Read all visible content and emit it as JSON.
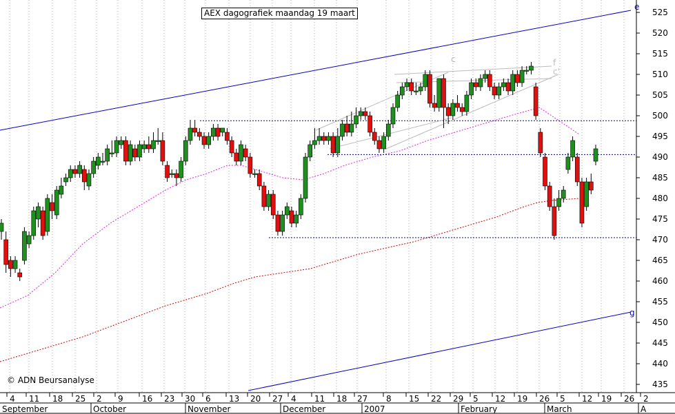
{
  "chart_data": {
    "type": "candlestick",
    "title": "AEX dagografiek maandag 19 maart",
    "credit": "© ADN Beursanalyse",
    "ylim": [
      433,
      528
    ],
    "y_ticks": [
      435,
      440,
      445,
      450,
      455,
      460,
      465,
      470,
      475,
      480,
      485,
      490,
      495,
      500,
      505,
      510,
      515,
      520,
      525
    ],
    "grid": "vertical dotted lines at each week",
    "x_tick_labels": [
      "4",
      "11",
      "18",
      "25",
      "2",
      "9",
      "16",
      "23",
      "30",
      "6",
      "13",
      "20",
      "27",
      "4",
      "11",
      "18",
      "27",
      "8",
      "15",
      "22",
      "29",
      "5",
      "12",
      "19",
      "26",
      "5",
      "12",
      "19",
      "26",
      "2"
    ],
    "month_labels": [
      "September",
      "October",
      "November",
      "December",
      "2007",
      "February",
      "March",
      "A"
    ],
    "annotations": [
      "e",
      "g",
      "c",
      "f",
      "c'"
    ],
    "candles": [
      [
        472,
        474,
        470,
        475
      ],
      [
        470,
        464,
        462,
        472
      ],
      [
        465,
        463,
        461,
        466
      ],
      [
        463,
        465,
        462,
        466
      ],
      [
        462,
        461,
        460,
        463
      ],
      [
        465,
        472,
        464,
        473
      ],
      [
        469,
        471,
        468,
        472
      ],
      [
        471,
        477,
        470,
        478
      ],
      [
        475,
        478,
        473,
        479
      ],
      [
        477,
        471,
        470,
        478
      ],
      [
        472,
        480,
        471,
        481
      ],
      [
        479,
        477,
        475,
        481
      ],
      [
        476,
        482,
        475,
        483
      ],
      [
        481,
        483,
        480,
        485
      ],
      [
        484,
        485,
        483,
        486
      ],
      [
        485,
        487,
        484,
        488
      ],
      [
        487,
        486,
        485,
        488
      ],
      [
        486,
        488,
        485,
        489
      ],
      [
        487,
        484,
        482,
        488
      ],
      [
        483,
        486,
        482,
        487
      ],
      [
        486,
        489,
        485,
        490
      ],
      [
        488,
        490,
        487,
        491
      ],
      [
        489,
        489,
        488,
        491
      ],
      [
        489,
        492,
        488,
        493
      ],
      [
        491,
        491,
        490,
        494
      ],
      [
        491,
        494,
        490,
        495
      ],
      [
        493,
        494,
        492,
        495
      ],
      [
        494,
        489,
        488,
        495
      ],
      [
        489,
        493,
        488,
        494
      ],
      [
        492,
        490,
        489,
        493
      ],
      [
        490,
        493,
        489,
        494
      ],
      [
        492,
        493,
        491,
        494
      ],
      [
        493,
        492,
        491,
        495
      ],
      [
        492,
        494,
        491,
        496
      ],
      [
        494,
        494,
        493,
        497
      ],
      [
        494,
        489,
        488,
        496
      ],
      [
        488,
        485,
        484,
        489
      ],
      [
        486,
        486,
        485,
        487
      ],
      [
        486,
        485,
        483,
        487
      ],
      [
        485,
        489,
        484,
        490
      ],
      [
        489,
        494,
        488,
        495
      ],
      [
        494,
        497,
        493,
        499
      ],
      [
        497,
        496,
        495,
        499
      ],
      [
        496,
        495,
        494,
        497
      ],
      [
        495,
        493,
        492,
        496
      ],
      [
        493,
        495,
        492,
        496
      ],
      [
        495,
        497,
        494,
        498
      ],
      [
        497,
        495,
        494,
        498
      ],
      [
        496,
        497,
        495,
        497
      ],
      [
        496,
        494,
        493,
        497
      ],
      [
        494,
        491,
        490,
        495
      ],
      [
        491,
        489,
        488,
        492
      ],
      [
        489,
        493,
        488,
        494
      ],
      [
        492,
        490,
        489,
        493
      ],
      [
        490,
        486,
        485,
        491
      ],
      [
        486,
        486,
        485,
        487
      ],
      [
        486,
        483,
        482,
        487
      ],
      [
        483,
        478,
        477,
        484
      ],
      [
        478,
        481,
        477,
        482
      ],
      [
        481,
        476,
        475,
        482
      ],
      [
        476,
        472,
        471,
        477
      ],
      [
        472,
        476,
        471,
        477
      ],
      [
        476,
        478,
        475,
        479
      ],
      [
        477,
        474,
        473,
        478
      ],
      [
        474,
        476,
        473,
        477
      ],
      [
        476,
        480,
        475,
        481
      ],
      [
        480,
        490,
        479,
        491
      ],
      [
        490,
        493,
        489,
        494
      ],
      [
        493,
        494,
        492,
        497
      ],
      [
        494,
        495,
        493,
        497
      ],
      [
        495,
        494,
        493,
        496
      ],
      [
        494,
        495,
        493,
        496
      ],
      [
        495,
        491,
        490,
        496
      ],
      [
        491,
        495,
        490,
        497
      ],
      [
        495,
        498,
        494,
        499
      ],
      [
        498,
        496,
        495,
        500
      ],
      [
        496,
        498,
        495,
        501
      ],
      [
        498,
        500,
        497,
        502
      ],
      [
        500,
        501,
        499,
        502
      ],
      [
        501,
        500,
        499,
        502
      ],
      [
        500,
        496,
        495,
        501
      ],
      [
        496,
        494,
        493,
        497
      ],
      [
        494,
        492,
        491,
        495
      ],
      [
        492,
        495,
        491,
        496
      ],
      [
        495,
        498,
        494,
        499
      ],
      [
        498,
        502,
        497,
        503
      ],
      [
        502,
        505,
        501,
        506
      ],
      [
        505,
        507,
        504,
        508
      ],
      [
        507,
        508,
        506,
        509
      ],
      [
        508,
        506,
        505,
        509
      ],
      [
        506,
        506,
        505,
        508
      ],
      [
        506,
        507,
        505,
        508
      ],
      [
        507,
        510,
        506,
        511
      ],
      [
        510,
        503,
        502,
        511
      ],
      [
        503,
        502,
        501,
        505
      ],
      [
        502,
        509,
        501,
        509
      ],
      [
        509,
        502,
        497,
        510
      ],
      [
        502,
        500,
        498,
        503
      ],
      [
        500,
        503,
        499,
        504
      ],
      [
        503,
        502,
        501,
        505
      ],
      [
        502,
        501,
        500,
        503
      ],
      [
        501,
        505,
        500,
        506
      ],
      [
        505,
        508,
        504,
        509
      ],
      [
        508,
        507,
        506,
        509
      ],
      [
        507,
        509,
        506,
        510
      ],
      [
        509,
        510,
        508,
        511
      ],
      [
        510,
        507,
        506,
        511
      ],
      [
        507,
        505,
        504,
        508
      ],
      [
        505,
        507,
        504,
        508
      ],
      [
        507,
        508,
        506,
        509
      ],
      [
        508,
        506,
        505,
        509
      ],
      [
        506,
        510,
        505,
        511
      ],
      [
        510,
        508,
        507,
        511
      ],
      [
        508,
        511,
        507,
        512
      ],
      [
        511,
        511,
        510,
        512
      ],
      [
        511,
        512,
        510,
        513
      ],
      [
        507,
        500,
        499,
        508
      ],
      [
        496,
        491,
        490,
        497
      ],
      [
        490,
        483,
        482,
        491
      ],
      [
        483,
        478,
        477,
        484
      ],
      [
        478,
        471,
        470,
        480
      ],
      [
        478,
        480,
        477,
        482
      ],
      [
        480,
        482,
        479,
        483
      ],
      [
        487,
        490,
        486,
        491
      ],
      [
        490,
        494,
        489,
        495
      ],
      [
        490,
        484,
        483,
        491
      ],
      [
        484,
        474,
        473,
        485
      ],
      [
        478,
        484,
        477,
        485
      ],
      [
        484,
        482,
        481,
        486
      ],
      [
        489,
        492,
        488,
        493
      ]
    ],
    "moving_averages": [
      {
        "style": "magenta dashed",
        "values": [
          [
            0,
            453.5
          ],
          [
            40,
            456.5
          ],
          [
            80,
            462
          ],
          [
            120,
            469
          ],
          [
            160,
            474
          ],
          [
            200,
            478
          ],
          [
            240,
            482
          ],
          [
            270,
            484.5
          ],
          [
            300,
            486
          ],
          [
            330,
            488
          ],
          [
            350,
            488
          ],
          [
            380,
            486.5
          ],
          [
            410,
            485
          ],
          [
            440,
            484.5
          ],
          [
            470,
            486
          ],
          [
            500,
            488
          ],
          [
            540,
            490
          ],
          [
            580,
            491.5
          ],
          [
            620,
            494
          ],
          [
            660,
            496
          ],
          [
            700,
            498
          ],
          [
            740,
            500
          ],
          [
            782,
            502
          ],
          [
            800,
            500
          ],
          [
            840,
            495.5
          ]
        ]
      },
      {
        "style": "red dashed",
        "values": [
          [
            0,
            440.5
          ],
          [
            40,
            442.5
          ],
          [
            80,
            444.5
          ],
          [
            120,
            446.5
          ],
          [
            160,
            449
          ],
          [
            200,
            451.5
          ],
          [
            240,
            454
          ],
          [
            270,
            455.5
          ],
          [
            300,
            457
          ],
          [
            340,
            459.5
          ],
          [
            370,
            461
          ],
          [
            410,
            462
          ],
          [
            450,
            463
          ],
          [
            490,
            465
          ],
          [
            520,
            466.5
          ],
          [
            560,
            468
          ],
          [
            600,
            469.5
          ],
          [
            640,
            471.5
          ],
          [
            680,
            473.5
          ],
          [
            720,
            475.5
          ],
          [
            760,
            478
          ],
          [
            780,
            479
          ],
          [
            800,
            479.5
          ],
          [
            840,
            480
          ]
        ]
      }
    ],
    "levels": [
      {
        "y": 498.8,
        "x_from": 290,
        "x_to": 923
      },
      {
        "y": 490.6,
        "x_from": 475,
        "x_to": 923
      },
      {
        "y": 470.5,
        "x_from": 390,
        "x_to": 923
      }
    ],
    "trend_lines": [
      {
        "label": "e",
        "from": [
          0,
          496.5
        ],
        "to": [
          915,
          525.5
        ]
      },
      {
        "label": "g",
        "from": [
          360,
          433.5
        ],
        "to": [
          915,
          452.5
        ]
      },
      {
        "label": "c",
        "from": [
          458,
          496.5
        ],
        "to": [
          650,
          510.5
        ]
      },
      {
        "label": "",
        "from": [
          478,
          492
        ],
        "to": [
          655,
          499.5
        ]
      },
      {
        "label": "",
        "from": [
          560,
          492
        ],
        "to": [
          810,
          510
        ]
      },
      {
        "label": "f",
        "from": [
          572,
          510
        ],
        "to": [
          800,
          512
        ]
      },
      {
        "label": "c'",
        "from": [
          575,
          508
        ],
        "to": [
          800,
          509
        ]
      }
    ]
  }
}
